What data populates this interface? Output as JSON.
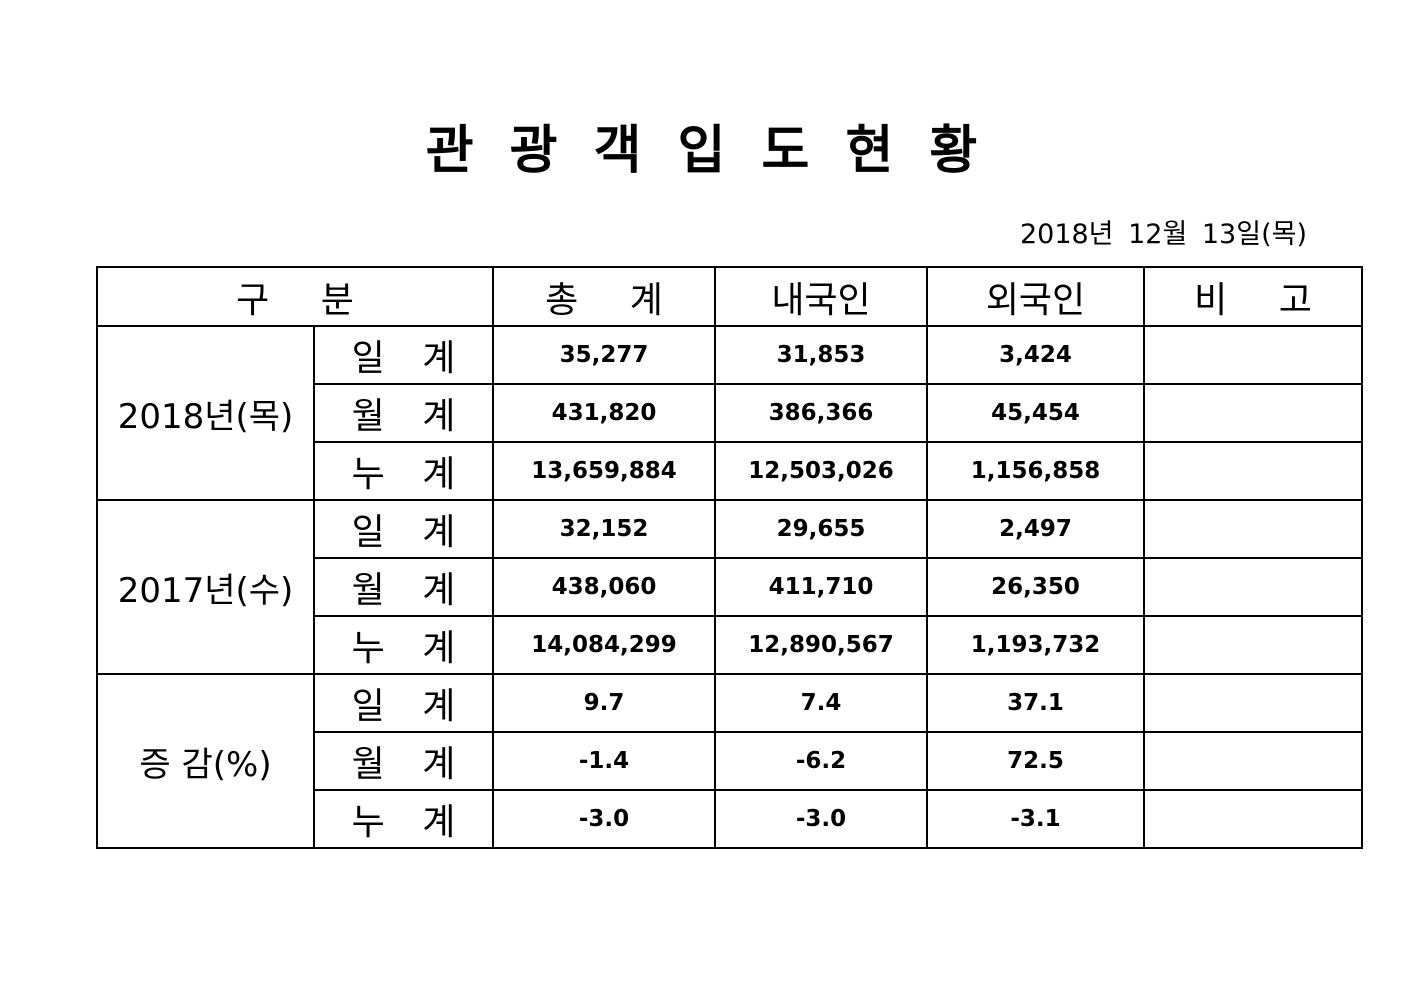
{
  "title": "관 광 객 입 도 현 황",
  "date": "2018년 12월 13일(목)",
  "table": {
    "header": [
      "구 분",
      "총 계",
      "내국인",
      "외국인",
      "비 고"
    ],
    "groups": [
      {
        "label": "2018년(목)",
        "rows": [
          {
            "label": "일 계",
            "values": [
              "35,277",
              "31,853",
              "3,424"
            ]
          },
          {
            "label": "월 계",
            "values": [
              "431,820",
              "386,366",
              "45,454"
            ]
          },
          {
            "label": "누 계",
            "values": [
              "13,659,884",
              "12,503,026",
              "1,156,858"
            ]
          }
        ]
      },
      {
        "label": "2017년(수)",
        "rows": [
          {
            "label": "일 계",
            "values": [
              "32,152",
              "29,655",
              "2,497"
            ]
          },
          {
            "label": "월 계",
            "values": [
              "438,060",
              "411,710",
              "26,350"
            ]
          },
          {
            "label": "누 계",
            "values": [
              "14,084,299",
              "12,890,567",
              "1,193,732"
            ]
          }
        ]
      },
      {
        "label": "증 감(%)",
        "rows": [
          {
            "label": "일 계",
            "values": [
              "9.7",
              "7.4",
              "37.1"
            ]
          },
          {
            "label": "월 계",
            "values": [
              "-1.4",
              "-6.2",
              "72.5"
            ]
          },
          {
            "label": "누 계",
            "values": [
              "-3.0",
              "-3.0",
              "-3.1"
            ]
          }
        ]
      }
    ]
  }
}
